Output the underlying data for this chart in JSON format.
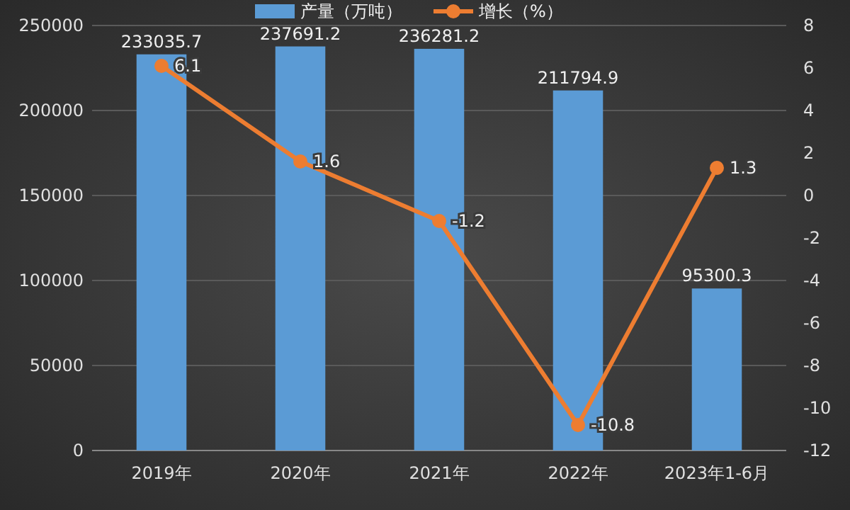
{
  "chart_data": {
    "type": "bar",
    "categories": [
      "2019年",
      "2020年",
      "2021年",
      "2022年",
      "2023年1-6月"
    ],
    "series": [
      {
        "name": "产量（万吨）",
        "color": "#5b9bd5",
        "values": [
          233035.7,
          237691.2,
          236281.2,
          211794.9,
          95300.3
        ]
      },
      {
        "name": "增长（%）",
        "type": "line",
        "axis": "y2",
        "color": "#ed7d31",
        "marker": "circle",
        "values": [
          6.1,
          1.6,
          -1.2,
          -10.8,
          1.3
        ]
      }
    ],
    "ylim": [
      0,
      250000
    ],
    "yticks": [
      0,
      50000,
      100000,
      150000,
      200000,
      250000
    ],
    "y2lim": [
      -12,
      8
    ],
    "y2ticks": [
      -12,
      -10,
      -8,
      -6,
      -4,
      -2,
      0,
      2,
      4,
      6,
      8
    ],
    "grid": "y",
    "legend": "top",
    "data_labels": true
  }
}
